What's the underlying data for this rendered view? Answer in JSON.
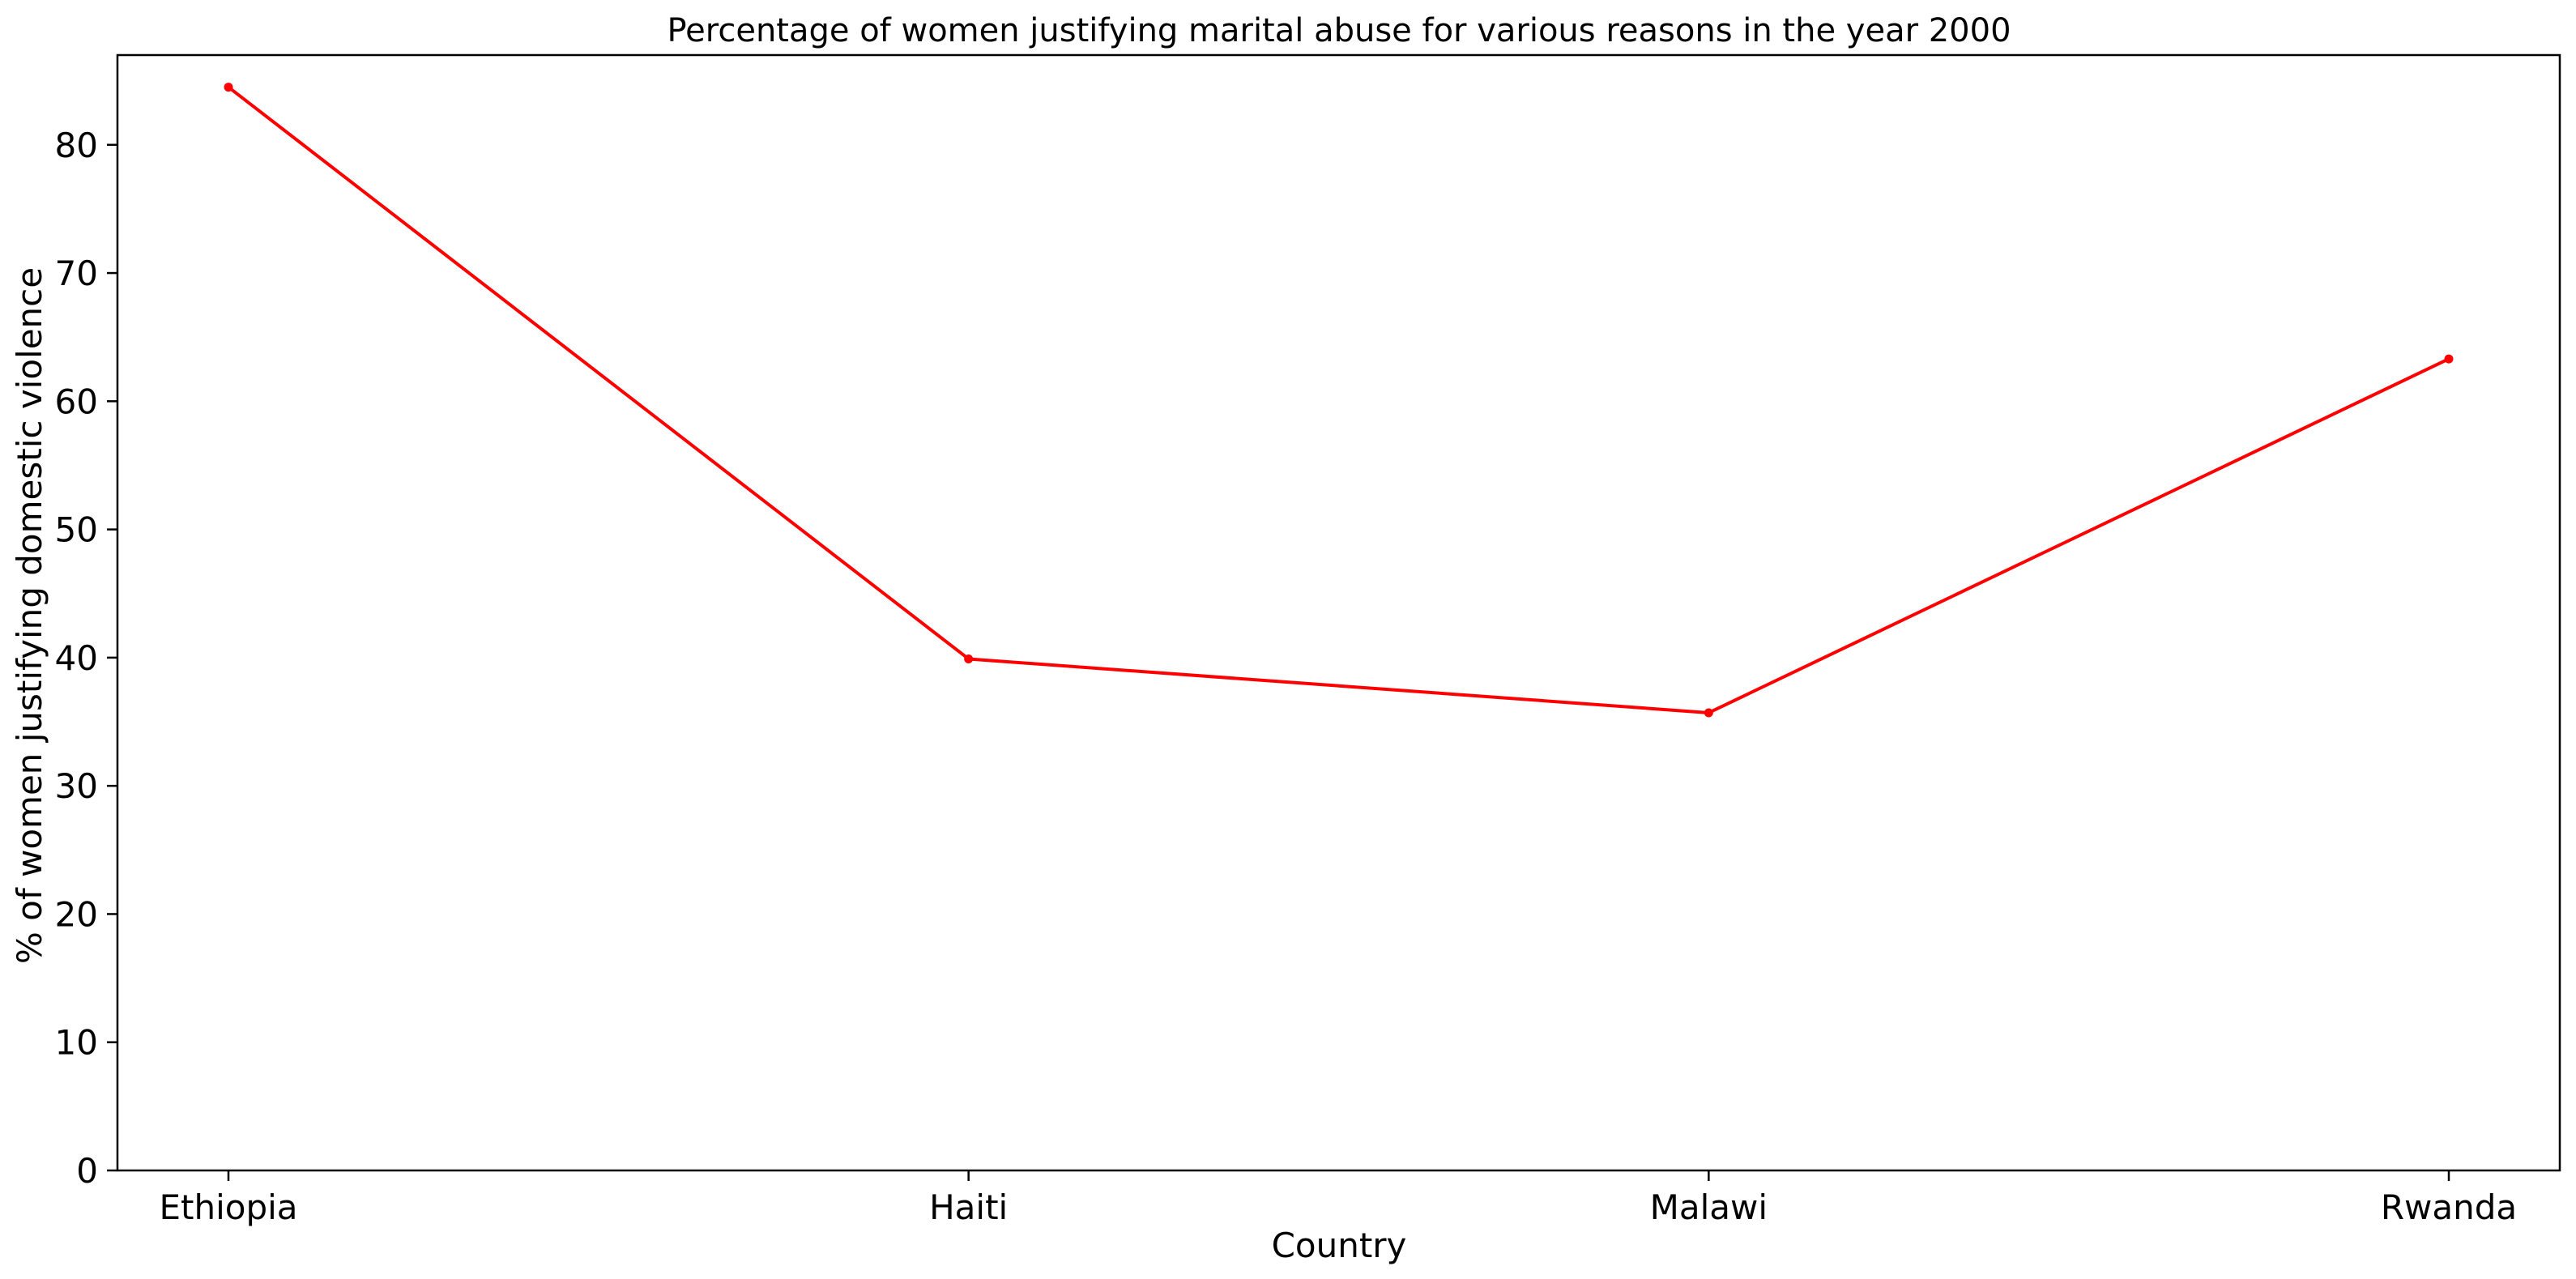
{
  "chart_data": {
    "type": "line",
    "title": "Percentage of women justifying marital abuse for various reasons in the year 2000",
    "xlabel": "Country",
    "ylabel": "% of women justifying domestic violence",
    "categories": [
      "Ethiopia",
      "Haiti",
      "Malawi",
      "Rwanda"
    ],
    "values": [
      84.5,
      39.9,
      35.7,
      63.3
    ],
    "ylim": [
      0,
      87
    ],
    "yticks": [
      0,
      10,
      20,
      30,
      40,
      50,
      60,
      70,
      80
    ],
    "line_color": "#ff0000",
    "grid": false,
    "legend": "none"
  }
}
